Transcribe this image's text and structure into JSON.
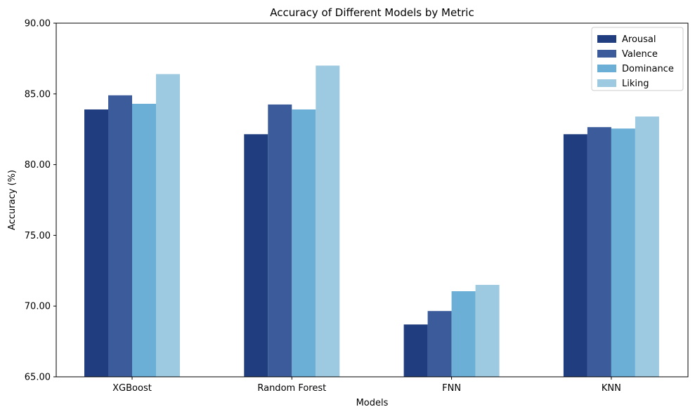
{
  "chart_data": {
    "type": "bar",
    "title": "Accuracy of Different Models by Metric",
    "xlabel": "Models",
    "ylabel": "Accuracy (%)",
    "categories": [
      "XGBoost",
      "Random Forest",
      "FNN",
      "KNN"
    ],
    "series": [
      {
        "name": "Arousal",
        "color": "#203e7f",
        "values": [
          83.9,
          82.15,
          68.7,
          82.15
        ]
      },
      {
        "name": "Valence",
        "color": "#3b5b9b",
        "values": [
          84.9,
          84.25,
          69.65,
          82.65
        ]
      },
      {
        "name": "Dominance",
        "color": "#6baed6",
        "values": [
          84.3,
          83.9,
          71.05,
          82.55
        ]
      },
      {
        "name": "Liking",
        "color": "#9ecae1",
        "values": [
          86.4,
          87.0,
          71.5,
          83.4
        ]
      }
    ],
    "ylim": [
      65,
      90
    ],
    "yticks": [
      "65.00",
      "70.00",
      "75.00",
      "80.00",
      "85.00",
      "90.00"
    ],
    "grid": false,
    "legend_position": "top-right"
  }
}
